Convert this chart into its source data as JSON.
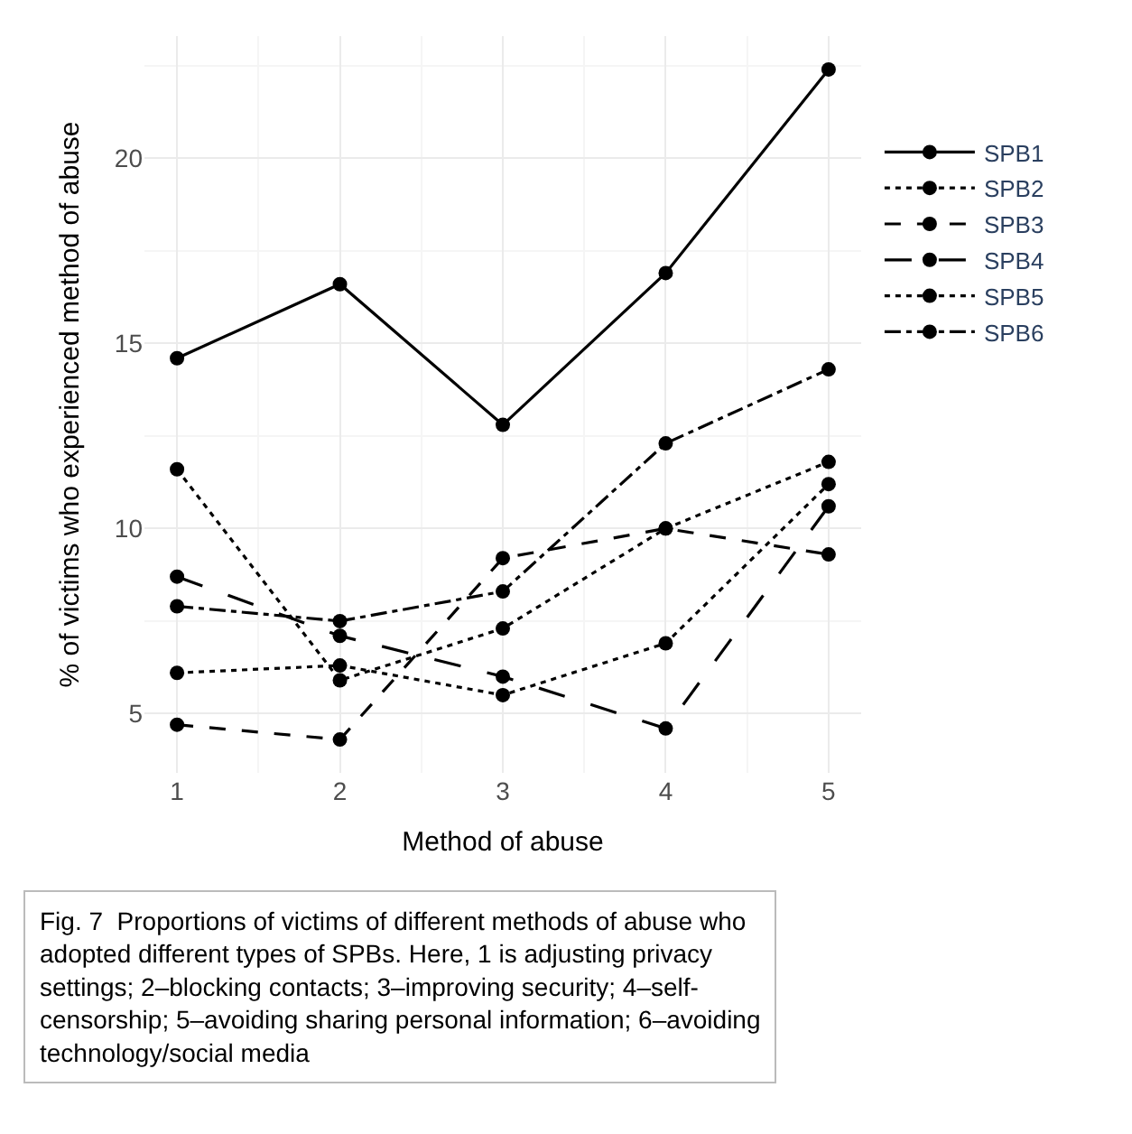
{
  "chart_data": {
    "type": "line",
    "xlabel": "Method of abuse",
    "ylabel": "% of victims who experienced method of abuse",
    "x": [
      1,
      2,
      3,
      4,
      5
    ],
    "series": [
      {
        "name": "SPB1",
        "color": "#000000",
        "line_style": "solid",
        "values": [
          14.6,
          16.6,
          12.8,
          16.9,
          22.4
        ]
      },
      {
        "name": "SPB2",
        "color": "#000000",
        "line_style": "dotted",
        "values": [
          11.6,
          5.9,
          7.3,
          10.0,
          11.8
        ]
      },
      {
        "name": "SPB3",
        "color": "#000000",
        "line_style": "dashed",
        "values": [
          4.7,
          4.3,
          9.2,
          10.0,
          9.3
        ]
      },
      {
        "name": "SPB4",
        "color": "#000000",
        "line_style": "longdash",
        "values": [
          8.7,
          7.1,
          6.0,
          4.6,
          10.6
        ]
      },
      {
        "name": "SPB5",
        "color": "#000000",
        "line_style": "dotted",
        "values": [
          6.1,
          6.3,
          5.5,
          6.9,
          11.2
        ]
      },
      {
        "name": "SPB6",
        "color": "#000000",
        "line_style": "dashdot",
        "values": [
          7.9,
          7.5,
          8.3,
          12.3,
          14.3
        ]
      }
    ],
    "xlim": [
      0.8,
      5.2
    ],
    "xticks": [
      1,
      2,
      3,
      4,
      5
    ],
    "ylim": [
      3.4,
      23.3
    ],
    "yticks": [
      5,
      10,
      15,
      20
    ],
    "grid": true,
    "legend": "right",
    "marker": "circle",
    "annotations": [
      "Fig. 7  Proportions of victims of different methods of abuse who adopted different types of SPBs. Here, 1 is adjusting privacy settings; 2–blocking contacts; 3–improving security; 4–self-censorship; 5–avoiding sharing personal information; 6–avoiding technology/social media"
    ]
  }
}
